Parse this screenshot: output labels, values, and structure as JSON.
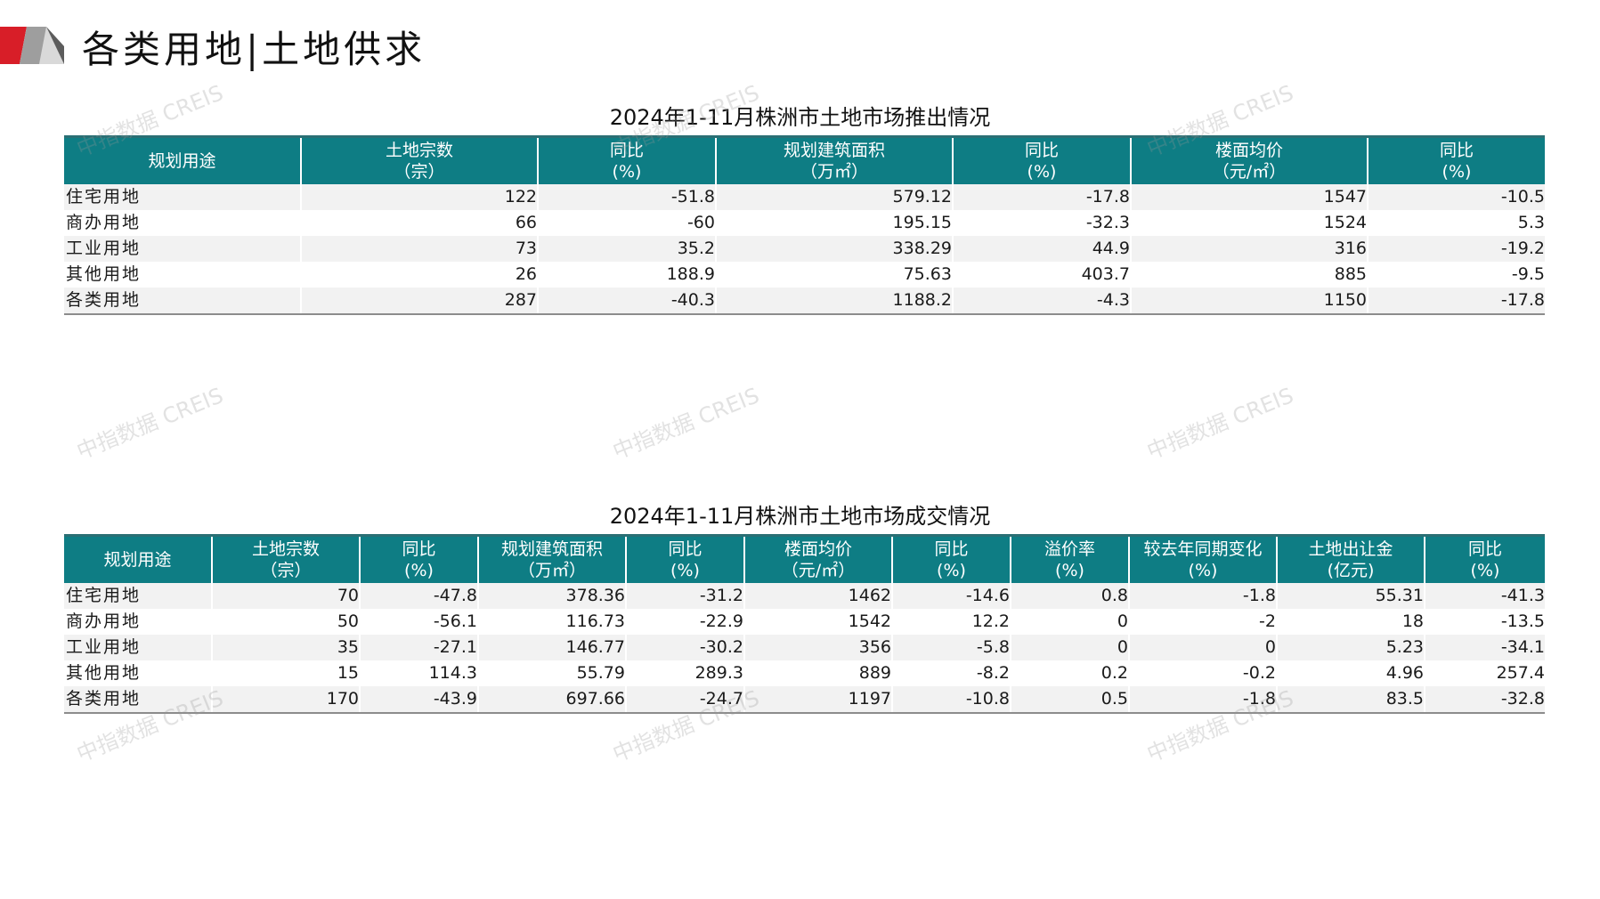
{
  "header": {
    "title": "各类用地|土地供求"
  },
  "watermark_text": "中指数据 CREIS",
  "table_supply": {
    "title": "2024年1-11月株洲市土地市场推出情况",
    "columns": [
      {
        "line1": "规划用途",
        "line2": ""
      },
      {
        "line1": "土地宗数",
        "line2": "（宗）"
      },
      {
        "line1": "同比",
        "line2": "(%)"
      },
      {
        "line1": "规划建筑面积",
        "line2": "（万㎡）"
      },
      {
        "line1": "同比",
        "line2": "(%)"
      },
      {
        "line1": "楼面均价",
        "line2": "（元/㎡）"
      },
      {
        "line1": "同比",
        "line2": "(%)"
      }
    ],
    "rows": [
      [
        "住宅用地",
        "122",
        "-51.8",
        "579.12",
        "-17.8",
        "1547",
        "-10.5"
      ],
      [
        "商办用地",
        "66",
        "-60",
        "195.15",
        "-32.3",
        "1524",
        "5.3"
      ],
      [
        "工业用地",
        "73",
        "35.2",
        "338.29",
        "44.9",
        "316",
        "-19.2"
      ],
      [
        "其他用地",
        "26",
        "188.9",
        "75.63",
        "403.7",
        "885",
        "-9.5"
      ],
      [
        "各类用地",
        "287",
        "-40.3",
        "1188.2",
        "-4.3",
        "1150",
        "-17.8"
      ]
    ]
  },
  "table_deal": {
    "title": "2024年1-11月株洲市土地市场成交情况",
    "columns": [
      {
        "line1": "规划用途",
        "line2": ""
      },
      {
        "line1": "土地宗数",
        "line2": "（宗）"
      },
      {
        "line1": "同比",
        "line2": "(%)"
      },
      {
        "line1": "规划建筑面积",
        "line2": "（万㎡）"
      },
      {
        "line1": "同比",
        "line2": "(%)"
      },
      {
        "line1": "楼面均价",
        "line2": "（元/㎡）"
      },
      {
        "line1": "同比",
        "line2": "(%)"
      },
      {
        "line1": "溢价率",
        "line2": "(%)"
      },
      {
        "line1": "较去年同期变化",
        "line2": "(%)"
      },
      {
        "line1": "土地出让金",
        "line2": "(亿元)"
      },
      {
        "line1": "同比",
        "line2": "(%)"
      }
    ],
    "rows": [
      [
        "住宅用地",
        "70",
        "-47.8",
        "378.36",
        "-31.2",
        "1462",
        "-14.6",
        "0.8",
        "-1.8",
        "55.31",
        "-41.3"
      ],
      [
        "商办用地",
        "50",
        "-56.1",
        "116.73",
        "-22.9",
        "1542",
        "12.2",
        "0",
        "-2",
        "18",
        "-13.5"
      ],
      [
        "工业用地",
        "35",
        "-27.1",
        "146.77",
        "-30.2",
        "356",
        "-5.8",
        "0",
        "0",
        "5.23",
        "-34.1"
      ],
      [
        "其他用地",
        "15",
        "114.3",
        "55.79",
        "289.3",
        "889",
        "-8.2",
        "0.2",
        "-0.2",
        "4.96",
        "257.4"
      ],
      [
        "各类用地",
        "170",
        "-43.9",
        "697.66",
        "-24.7",
        "1197",
        "-10.8",
        "0.5",
        "-1.8",
        "83.5",
        "-32.8"
      ]
    ]
  }
}
